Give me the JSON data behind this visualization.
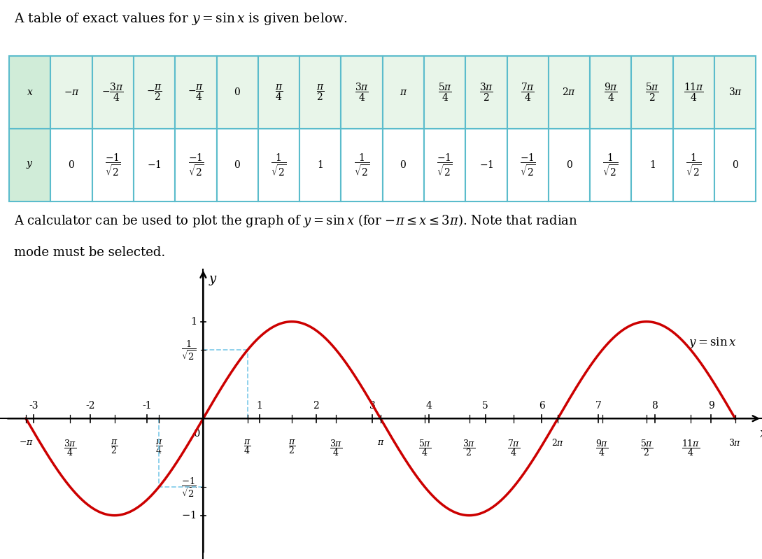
{
  "curve_color": "#cc0000",
  "dashed_color": "#87ceeb",
  "background_color": "#ffffff",
  "table_border_color": "#5bbccc",
  "table_header_col_color": "#d0ecd8",
  "table_x_row_color": "#e8f5e9",
  "table_y_row_color": "#ffffff",
  "x_min": -3.6,
  "x_max": 9.9,
  "y_min": -1.45,
  "y_max": 1.55,
  "fig_width": 10.89,
  "fig_height": 7.99
}
